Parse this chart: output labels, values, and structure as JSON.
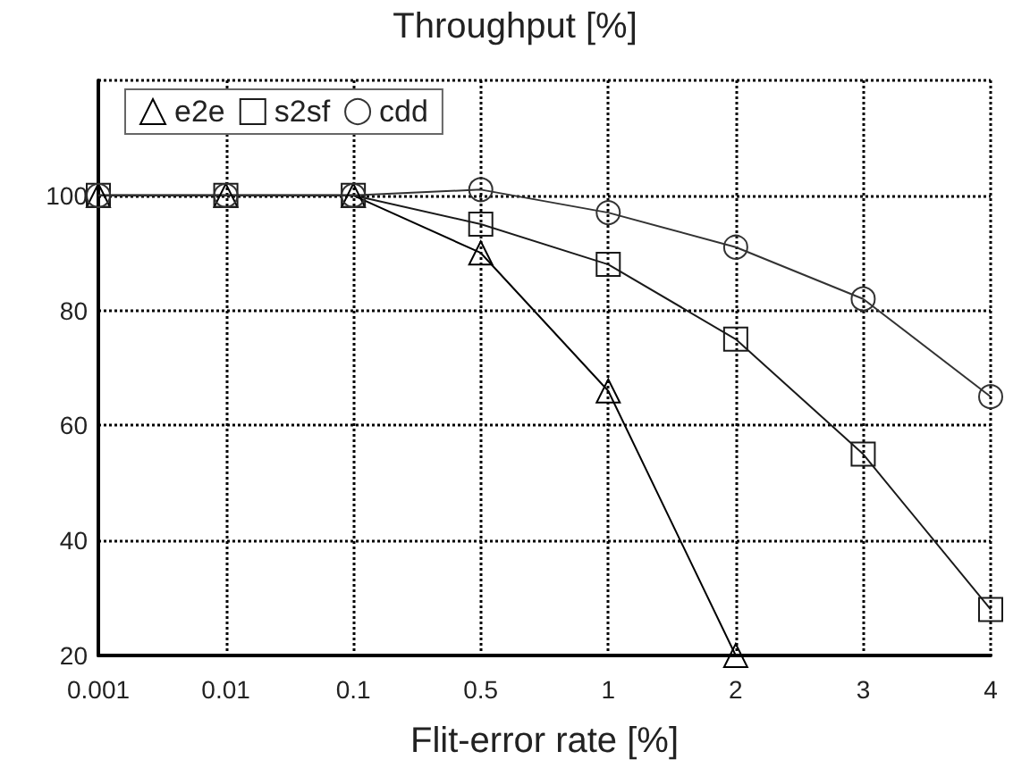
{
  "chart_data": {
    "type": "line",
    "title": "Throughput [%]",
    "xlabel": "Flit-error rate [%]",
    "categories": [
      "0.001",
      "0.01",
      "0.1",
      "0.5",
      "1",
      "2",
      "3",
      "4"
    ],
    "series": [
      {
        "name": "e2e",
        "color": "#000000",
        "marker": "triangle",
        "values": [
          100,
          100,
          100,
          90,
          66,
          20,
          null,
          null
        ]
      },
      {
        "name": "s2sf",
        "color": "#1a1a1a",
        "marker": "square",
        "values": [
          100,
          100,
          100,
          95,
          88,
          75,
          55,
          28
        ]
      },
      {
        "name": "cdd",
        "color": "#333333",
        "marker": "circle",
        "values": [
          100,
          100,
          100,
          101,
          97,
          91,
          82,
          65
        ]
      }
    ],
    "ylim": [
      20,
      120
    ],
    "yticks": [
      20,
      40,
      60,
      80,
      100
    ],
    "grid": true,
    "legend": "top left",
    "line_style": "solid"
  }
}
